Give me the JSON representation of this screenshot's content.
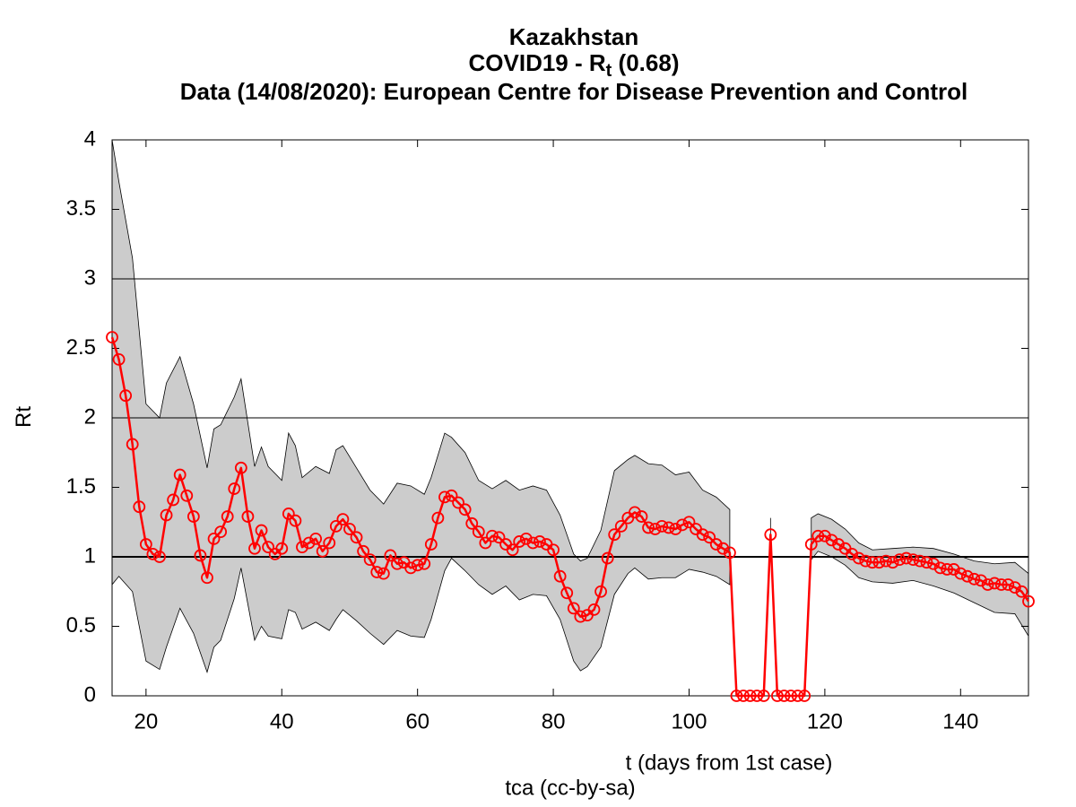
{
  "chart_data": {
    "type": "line",
    "title": [
      [
        "Kazakhstan"
      ],
      [
        "COVID19 - R",
        "t",
        " (0.68)"
      ],
      [
        "Data (14/08/2020): European Centre for Disease Prevention and Control"
      ]
    ],
    "ylabel": [
      "R",
      "t"
    ],
    "xlabel": "t (days from 1st case)",
    "note": "tca (cc-by-sa)",
    "x": [
      15,
      16,
      17,
      18,
      19,
      20,
      21,
      22,
      23,
      24,
      25,
      26,
      27,
      28,
      29,
      30,
      31,
      32,
      33,
      34,
      35,
      36,
      37,
      38,
      39,
      40,
      41,
      42,
      43,
      44,
      45,
      46,
      47,
      48,
      49,
      50,
      51,
      52,
      53,
      54,
      55,
      56,
      57,
      58,
      59,
      60,
      61,
      62,
      63,
      64,
      65,
      66,
      67,
      68,
      69,
      70,
      71,
      72,
      73,
      74,
      75,
      76,
      77,
      78,
      79,
      80,
      81,
      82,
      83,
      84,
      85,
      86,
      87,
      88,
      89,
      90,
      91,
      92,
      93,
      94,
      95,
      96,
      97,
      98,
      99,
      100,
      101,
      102,
      103,
      104,
      105,
      106,
      107,
      108,
      109,
      110,
      111,
      112,
      113,
      114,
      115,
      116,
      117,
      118,
      119,
      120,
      121,
      122,
      123,
      124,
      125,
      126,
      127,
      128,
      129,
      130,
      131,
      132,
      133,
      134,
      135,
      136,
      137,
      138,
      139,
      140,
      141,
      142,
      143,
      144,
      145,
      146,
      147,
      148,
      149,
      150
    ],
    "series": [
      {
        "color": "#ff0000",
        "values": [
          2.58,
          2.42,
          2.16,
          1.81,
          1.36,
          1.09,
          1.02,
          1.0,
          1.3,
          1.41,
          1.59,
          1.44,
          1.29,
          1.01,
          0.85,
          1.13,
          1.18,
          1.29,
          1.49,
          1.64,
          1.29,
          1.06,
          1.19,
          1.07,
          1.02,
          1.06,
          1.31,
          1.26,
          1.07,
          1.1,
          1.13,
          1.04,
          1.1,
          1.22,
          1.27,
          1.2,
          1.14,
          1.04,
          0.98,
          0.89,
          0.88,
          1.01,
          0.95,
          0.96,
          0.92,
          0.94,
          0.95,
          1.09,
          1.28,
          1.43,
          1.44,
          1.39,
          1.34,
          1.24,
          1.18,
          1.1,
          1.15,
          1.14,
          1.09,
          1.05,
          1.11,
          1.13,
          1.1,
          1.11,
          1.09,
          1.05,
          0.86,
          0.74,
          0.63,
          0.57,
          0.58,
          0.62,
          0.75,
          0.99,
          1.16,
          1.22,
          1.28,
          1.32,
          1.29,
          1.21,
          1.2,
          1.22,
          1.21,
          1.2,
          1.23,
          1.25,
          1.2,
          1.16,
          1.14,
          1.09,
          1.06,
          1.03,
          0,
          0,
          0,
          0,
          0,
          1.16,
          0,
          0,
          0,
          0,
          0,
          1.09,
          1.15,
          1.15,
          1.12,
          1.09,
          1.06,
          1.02,
          0.99,
          0.97,
          0.96,
          0.96,
          0.97,
          0.96,
          0.98,
          0.99,
          0.98,
          0.97,
          0.96,
          0.95,
          0.92,
          0.91,
          0.91,
          0.88,
          0.86,
          0.84,
          0.83,
          0.8,
          0.81,
          0.8,
          0.8,
          0.78,
          0.75,
          0.68
        ]
      }
    ],
    "band": {
      "color": "#cccccc",
      "x": [
        15,
        16,
        18,
        20,
        22,
        23,
        25,
        27,
        29,
        30,
        31,
        33,
        34,
        36,
        37,
        38,
        40,
        41,
        42,
        43,
        45,
        47,
        48,
        49,
        51,
        53,
        55,
        57,
        59,
        61,
        62,
        64,
        65,
        67,
        69,
        71,
        73,
        75,
        77,
        79,
        81,
        83,
        84,
        85,
        87,
        89,
        91,
        92,
        94,
        96,
        98,
        100,
        102,
        104,
        106,
        107,
        112,
        113,
        118,
        119,
        121,
        123,
        125,
        127,
        130,
        133,
        136,
        139,
        142,
        145,
        148,
        150
      ],
      "upper": [
        4.0,
        3.7,
        3.15,
        2.1,
        2.0,
        2.25,
        2.44,
        2.1,
        1.64,
        1.92,
        1.95,
        2.15,
        2.28,
        1.65,
        1.79,
        1.65,
        1.55,
        1.89,
        1.8,
        1.57,
        1.65,
        1.6,
        1.77,
        1.8,
        1.64,
        1.48,
        1.38,
        1.53,
        1.51,
        1.45,
        1.57,
        1.89,
        1.86,
        1.75,
        1.55,
        1.49,
        1.55,
        1.48,
        1.51,
        1.48,
        1.3,
        1.02,
        0.97,
        0.99,
        1.19,
        1.62,
        1.7,
        1.73,
        1.67,
        1.66,
        1.59,
        1.61,
        1.48,
        1.43,
        1.34,
        null,
        1.28,
        null,
        1.28,
        1.31,
        1.27,
        1.2,
        1.1,
        1.05,
        1.06,
        1.07,
        1.06,
        1.02,
        0.97,
        0.95,
        0.96,
        0.88
      ],
      "lower": [
        0.8,
        0.86,
        0.75,
        0.25,
        0.19,
        0.35,
        0.63,
        0.45,
        0.17,
        0.35,
        0.4,
        0.7,
        0.92,
        0.4,
        0.5,
        0.43,
        0.41,
        0.62,
        0.6,
        0.48,
        0.53,
        0.47,
        0.55,
        0.62,
        0.54,
        0.45,
        0.37,
        0.47,
        0.43,
        0.42,
        0.55,
        0.9,
        0.99,
        0.9,
        0.8,
        0.73,
        0.79,
        0.69,
        0.73,
        0.72,
        0.55,
        0.25,
        0.18,
        0.21,
        0.35,
        0.73,
        0.88,
        0.92,
        0.84,
        0.85,
        0.85,
        0.91,
        0.89,
        0.86,
        0.8,
        null,
        1.05,
        null,
        0.98,
        1.04,
        1.0,
        0.94,
        0.85,
        0.82,
        0.81,
        0.83,
        0.79,
        0.74,
        0.67,
        0.6,
        0.59,
        0.43
      ]
    },
    "reference_line": 1,
    "hlines": [
      2,
      3
    ],
    "xlim": [
      15,
      150
    ],
    "xticks": [
      20,
      40,
      60,
      80,
      100,
      120,
      140
    ],
    "ylim": [
      0,
      4
    ],
    "yticks": [
      0,
      0.5,
      1,
      1.5,
      2,
      2.5,
      3,
      3.5,
      4
    ]
  }
}
